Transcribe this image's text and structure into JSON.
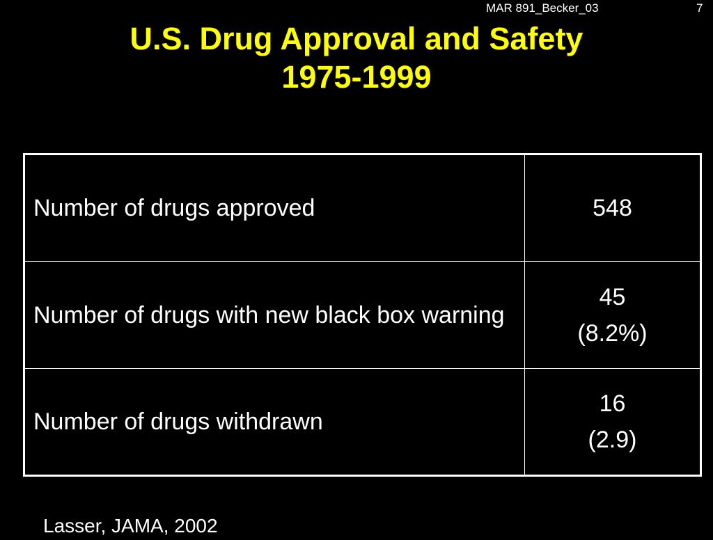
{
  "header": {
    "slide_code": "MAR 891_Becker_03",
    "slide_number": "7"
  },
  "title": {
    "line1": "U.S. Drug Approval and Safety",
    "line2": "1975-1999"
  },
  "table": {
    "rows": [
      {
        "label": "Number of drugs approved",
        "value": "548",
        "value_detail": ""
      },
      {
        "label": "Number of drugs with new black box warning",
        "value": "45",
        "value_detail": "(8.2%)"
      },
      {
        "label": "Number of drugs withdrawn",
        "value": "16",
        "value_detail": "(2.9)"
      }
    ]
  },
  "citation": "Lasser, JAMA, 2002",
  "colors": {
    "background": "#000000",
    "title": "#ffff00",
    "text": "#ffffff"
  }
}
